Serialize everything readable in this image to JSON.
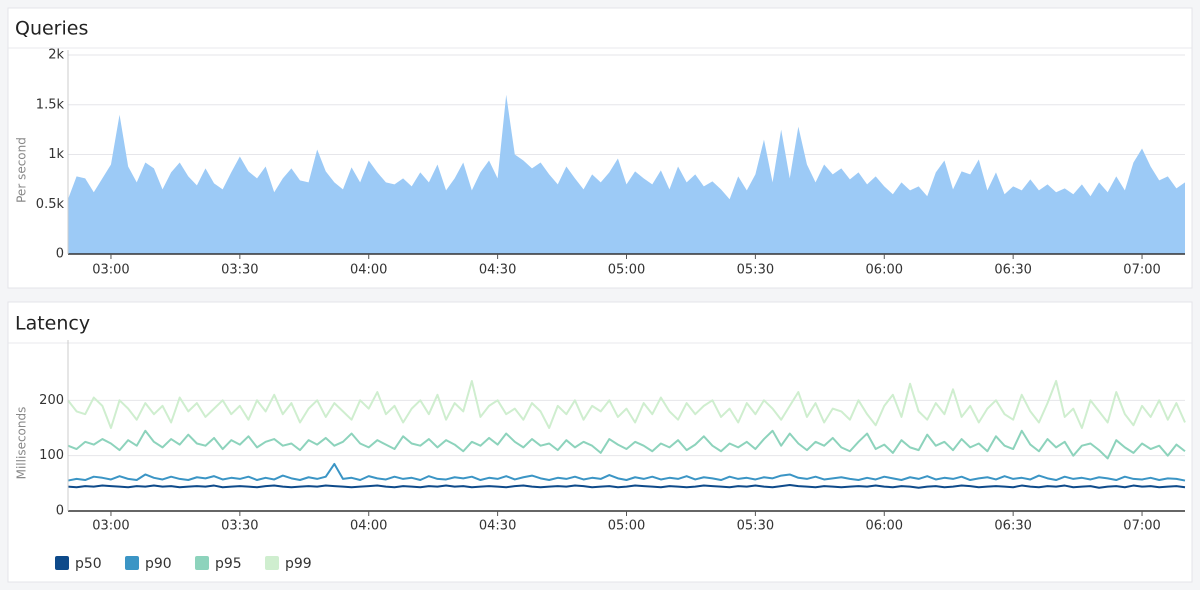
{
  "chart_data": [
    {
      "type": "area",
      "title": "Queries",
      "y_label": "Per second",
      "color": "#9ccaf6",
      "grid": true,
      "xlim": [
        "02:50",
        "07:10"
      ],
      "xticks": [
        "03:00",
        "03:30",
        "04:00",
        "04:30",
        "05:00",
        "05:30",
        "06:00",
        "06:30",
        "07:00"
      ],
      "ylim": [
        0,
        2000
      ],
      "yticks": [
        0,
        {
          "value": 500,
          "label": "0.5k"
        },
        {
          "value": 1000,
          "label": "1k"
        },
        {
          "value": 1500,
          "label": "1.5k"
        },
        {
          "value": 2000,
          "label": "2k"
        }
      ],
      "x": [
        "02:50",
        "02:52",
        "02:54",
        "02:56",
        "02:58",
        "03:00",
        "03:02",
        "03:04",
        "03:06",
        "03:08",
        "03:10",
        "03:12",
        "03:14",
        "03:16",
        "03:18",
        "03:20",
        "03:22",
        "03:24",
        "03:26",
        "03:28",
        "03:30",
        "03:32",
        "03:34",
        "03:36",
        "03:38",
        "03:40",
        "03:42",
        "03:44",
        "03:46",
        "03:48",
        "03:50",
        "03:52",
        "03:54",
        "03:56",
        "03:58",
        "04:00",
        "04:02",
        "04:04",
        "04:06",
        "04:08",
        "04:10",
        "04:12",
        "04:14",
        "04:16",
        "04:18",
        "04:20",
        "04:22",
        "04:24",
        "04:26",
        "04:28",
        "04:30",
        "04:32",
        "04:34",
        "04:36",
        "04:38",
        "04:40",
        "04:42",
        "04:44",
        "04:46",
        "04:48",
        "04:50",
        "04:52",
        "04:54",
        "04:56",
        "04:58",
        "05:00",
        "05:02",
        "05:04",
        "05:06",
        "05:08",
        "05:10",
        "05:12",
        "05:14",
        "05:16",
        "05:18",
        "05:20",
        "05:22",
        "05:24",
        "05:26",
        "05:28",
        "05:30",
        "05:32",
        "05:34",
        "05:36",
        "05:38",
        "05:40",
        "05:42",
        "05:44",
        "05:46",
        "05:48",
        "05:50",
        "05:52",
        "05:54",
        "05:56",
        "05:58",
        "06:00",
        "06:02",
        "06:04",
        "06:06",
        "06:08",
        "06:10",
        "06:12",
        "06:14",
        "06:16",
        "06:18",
        "06:20",
        "06:22",
        "06:24",
        "06:26",
        "06:28",
        "06:30",
        "06:32",
        "06:34",
        "06:36",
        "06:38",
        "06:40",
        "06:42",
        "06:44",
        "06:46",
        "06:48",
        "06:50",
        "06:52",
        "06:54",
        "06:56",
        "06:58",
        "07:00",
        "07:02",
        "07:04",
        "07:06",
        "07:08",
        "07:10"
      ],
      "values": [
        550,
        780,
        760,
        620,
        760,
        900,
        1400,
        880,
        720,
        920,
        860,
        650,
        820,
        920,
        780,
        690,
        860,
        710,
        650,
        820,
        980,
        830,
        760,
        880,
        620,
        760,
        860,
        740,
        720,
        1050,
        830,
        720,
        650,
        870,
        720,
        940,
        820,
        720,
        700,
        760,
        680,
        820,
        720,
        900,
        640,
        760,
        920,
        640,
        820,
        940,
        760,
        1600,
        1000,
        940,
        860,
        920,
        800,
        700,
        880,
        760,
        650,
        800,
        720,
        820,
        960,
        700,
        830,
        760,
        700,
        840,
        650,
        880,
        720,
        800,
        680,
        730,
        650,
        550,
        780,
        640,
        800,
        1150,
        720,
        1250,
        760,
        1280,
        900,
        720,
        900,
        800,
        860,
        750,
        820,
        700,
        780,
        680,
        600,
        720,
        640,
        680,
        580,
        820,
        940,
        650,
        830,
        800,
        950,
        640,
        820,
        600,
        680,
        640,
        750,
        640,
        700,
        620,
        660,
        600,
        700,
        580,
        720,
        620,
        780,
        640,
        920,
        1060,
        880,
        740,
        780,
        660,
        720
      ]
    },
    {
      "type": "line",
      "title": "Latency",
      "y_label": "Milliseconds",
      "grid": true,
      "xlim": [
        "02:50",
        "07:10"
      ],
      "xticks": [
        "03:00",
        "03:30",
        "04:00",
        "04:30",
        "05:00",
        "05:30",
        "06:00",
        "06:30",
        "07:00"
      ],
      "ylim": [
        0,
        300
      ],
      "yticks": [
        0,
        100,
        200
      ],
      "x": [
        "02:50",
        "02:52",
        "02:54",
        "02:56",
        "02:58",
        "03:00",
        "03:02",
        "03:04",
        "03:06",
        "03:08",
        "03:10",
        "03:12",
        "03:14",
        "03:16",
        "03:18",
        "03:20",
        "03:22",
        "03:24",
        "03:26",
        "03:28",
        "03:30",
        "03:32",
        "03:34",
        "03:36",
        "03:38",
        "03:40",
        "03:42",
        "03:44",
        "03:46",
        "03:48",
        "03:50",
        "03:52",
        "03:54",
        "03:56",
        "03:58",
        "04:00",
        "04:02",
        "04:04",
        "04:06",
        "04:08",
        "04:10",
        "04:12",
        "04:14",
        "04:16",
        "04:18",
        "04:20",
        "04:22",
        "04:24",
        "04:26",
        "04:28",
        "04:30",
        "04:32",
        "04:34",
        "04:36",
        "04:38",
        "04:40",
        "04:42",
        "04:44",
        "04:46",
        "04:48",
        "04:50",
        "04:52",
        "04:54",
        "04:56",
        "04:58",
        "05:00",
        "05:02",
        "05:04",
        "05:06",
        "05:08",
        "05:10",
        "05:12",
        "05:14",
        "05:16",
        "05:18",
        "05:20",
        "05:22",
        "05:24",
        "05:26",
        "05:28",
        "05:30",
        "05:32",
        "05:34",
        "05:36",
        "05:38",
        "05:40",
        "05:42",
        "05:44",
        "05:46",
        "05:48",
        "05:50",
        "05:52",
        "05:54",
        "05:56",
        "05:58",
        "06:00",
        "06:02",
        "06:04",
        "06:06",
        "06:08",
        "06:10",
        "06:12",
        "06:14",
        "06:16",
        "06:18",
        "06:20",
        "06:22",
        "06:24",
        "06:26",
        "06:28",
        "06:30",
        "06:32",
        "06:34",
        "06:36",
        "06:38",
        "06:40",
        "06:42",
        "06:44",
        "06:46",
        "06:48",
        "06:50",
        "06:52",
        "06:54",
        "06:56",
        "06:58",
        "07:00",
        "07:02",
        "07:04",
        "07:06",
        "07:08",
        "07:10"
      ],
      "series": [
        {
          "name": "p50",
          "color": "#0e4a8a",
          "values": [
            44,
            43,
            45,
            44,
            46,
            45,
            44,
            43,
            45,
            44,
            46,
            44,
            45,
            43,
            44,
            45,
            44,
            46,
            43,
            44,
            45,
            44,
            43,
            45,
            46,
            44,
            43,
            44,
            45,
            44,
            46,
            45,
            44,
            43,
            44,
            45,
            46,
            44,
            43,
            45,
            44,
            43,
            45,
            44,
            46,
            44,
            45,
            43,
            44,
            45,
            44,
            43,
            45,
            46,
            44,
            43,
            44,
            45,
            44,
            46,
            45,
            43,
            44,
            45,
            43,
            44,
            46,
            45,
            44,
            43,
            45,
            44,
            43,
            44,
            46,
            45,
            44,
            43,
            45,
            44,
            46,
            44,
            43,
            45,
            47,
            45,
            44,
            43,
            45,
            44,
            43,
            44,
            45,
            44,
            46,
            44,
            43,
            45,
            44,
            42,
            44,
            45,
            43,
            44,
            46,
            45,
            43,
            44,
            45,
            44,
            43,
            46,
            44,
            43,
            45,
            44,
            46,
            43,
            44,
            45,
            42,
            44,
            45,
            43,
            46,
            44,
            45,
            43,
            44,
            45,
            43
          ]
        },
        {
          "name": "p90",
          "color": "#3b95c5",
          "values": [
            55,
            58,
            56,
            62,
            60,
            57,
            63,
            58,
            56,
            66,
            60,
            57,
            62,
            58,
            56,
            61,
            59,
            63,
            57,
            60,
            58,
            62,
            56,
            60,
            57,
            64,
            59,
            56,
            61,
            58,
            62,
            85,
            58,
            60,
            56,
            63,
            59,
            57,
            62,
            58,
            60,
            56,
            63,
            58,
            57,
            61,
            59,
            62,
            56,
            60,
            58,
            63,
            57,
            61,
            64,
            59,
            56,
            60,
            58,
            62,
            57,
            60,
            58,
            65,
            59,
            56,
            61,
            58,
            62,
            57,
            60,
            58,
            63,
            57,
            61,
            59,
            56,
            62,
            58,
            60,
            57,
            61,
            59,
            64,
            66,
            60,
            58,
            62,
            57,
            59,
            61,
            58,
            56,
            60,
            57,
            62,
            59,
            56,
            61,
            58,
            63,
            57,
            60,
            58,
            62,
            56,
            59,
            61,
            57,
            63,
            58,
            60,
            57,
            64,
            59,
            56,
            62,
            58,
            60,
            57,
            61,
            59,
            56,
            62,
            58,
            57,
            60,
            56,
            59,
            58,
            55
          ]
        },
        {
          "name": "p95",
          "color": "#8dd3bc",
          "values": [
            118,
            112,
            125,
            120,
            130,
            122,
            110,
            128,
            118,
            145,
            125,
            115,
            130,
            120,
            138,
            122,
            118,
            132,
            112,
            128,
            120,
            135,
            115,
            125,
            130,
            118,
            122,
            110,
            128,
            120,
            132,
            118,
            125,
            140,
            122,
            115,
            128,
            120,
            112,
            135,
            122,
            118,
            130,
            115,
            128,
            120,
            108,
            125,
            118,
            132,
            120,
            140,
            125,
            115,
            130,
            118,
            122,
            110,
            128,
            115,
            125,
            118,
            105,
            130,
            120,
            112,
            125,
            118,
            108,
            122,
            115,
            128,
            110,
            120,
            135,
            118,
            108,
            122,
            115,
            125,
            112,
            130,
            145,
            118,
            140,
            122,
            110,
            125,
            118,
            132,
            115,
            108,
            125,
            140,
            112,
            120,
            105,
            128,
            115,
            110,
            138,
            118,
            125,
            110,
            130,
            115,
            122,
            108,
            135,
            118,
            112,
            145,
            120,
            108,
            130,
            115,
            125,
            100,
            118,
            122,
            110,
            95,
            128,
            115,
            105,
            122,
            112,
            118,
            100,
            120,
            108
          ]
        },
        {
          "name": "p99",
          "color": "#cfeecf",
          "values": [
            200,
            180,
            175,
            205,
            190,
            150,
            200,
            185,
            165,
            195,
            175,
            190,
            160,
            205,
            180,
            195,
            170,
            185,
            200,
            175,
            190,
            165,
            200,
            180,
            210,
            175,
            195,
            160,
            185,
            200,
            170,
            195,
            180,
            165,
            200,
            185,
            215,
            175,
            190,
            160,
            185,
            200,
            175,
            210,
            165,
            195,
            180,
            235,
            170,
            190,
            200,
            175,
            185,
            165,
            195,
            180,
            150,
            190,
            175,
            200,
            165,
            190,
            180,
            200,
            170,
            185,
            160,
            195,
            175,
            205,
            180,
            165,
            195,
            175,
            190,
            200,
            170,
            185,
            160,
            195,
            175,
            200,
            185,
            165,
            190,
            215,
            170,
            195,
            160,
            185,
            180,
            165,
            200,
            175,
            155,
            190,
            210,
            170,
            230,
            180,
            165,
            195,
            175,
            220,
            170,
            190,
            160,
            185,
            200,
            175,
            165,
            210,
            180,
            160,
            195,
            235,
            170,
            185,
            150,
            200,
            180,
            160,
            215,
            175,
            155,
            190,
            170,
            200,
            165,
            195,
            160
          ]
        }
      ]
    }
  ]
}
